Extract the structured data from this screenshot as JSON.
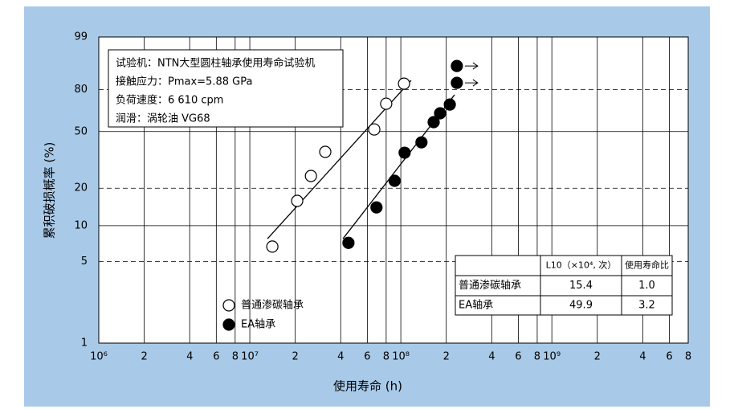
{
  "chart_data": {
    "type": "weibull",
    "x_label": "使用寿命 (h)",
    "y_label": "累积破损概率 (%)",
    "xlim": [
      1000000,
      8000000000
    ],
    "ylim": [
      1,
      99
    ],
    "x_log": true,
    "y_scale": "weibull",
    "xticks": [
      {
        "value": 1000000,
        "label": "10⁶"
      },
      {
        "value": 2000000,
        "label": "2"
      },
      {
        "value": 4000000,
        "label": "4"
      },
      {
        "value": 6000000,
        "label": "6"
      },
      {
        "value": 8000000,
        "label": "8"
      },
      {
        "value": 10000000,
        "label": "10⁷"
      },
      {
        "value": 20000000,
        "label": "2"
      },
      {
        "value": 40000000,
        "label": "4"
      },
      {
        "value": 60000000,
        "label": "6"
      },
      {
        "value": 80000000,
        "label": "8"
      },
      {
        "value": 100000000,
        "label": "10⁸"
      },
      {
        "value": 200000000,
        "label": "2"
      },
      {
        "value": 400000000,
        "label": "4"
      },
      {
        "value": 600000000,
        "label": "6"
      },
      {
        "value": 800000000,
        "label": "8"
      },
      {
        "value": 1000000000,
        "label": "10⁹"
      },
      {
        "value": 2000000000,
        "label": "2"
      },
      {
        "value": 4000000000,
        "label": "4"
      },
      {
        "value": 6000000000,
        "label": "6"
      },
      {
        "value": 8000000000,
        "label": "8"
      }
    ],
    "yticks": [
      1,
      5,
      10,
      20,
      50,
      80,
      99
    ],
    "ygrid_styles": [
      "solid",
      "dashed",
      "solid",
      "dashed",
      "solid",
      "dashed",
      "solid"
    ],
    "grid": true,
    "series": [
      {
        "name": "普通渗碳轴承",
        "marker": "open",
        "color": "#000000",
        "x": [
          14100000,
          20600000,
          25400000,
          31600000,
          66700000,
          80000000,
          105000000
        ],
        "values": [
          6.7,
          15.9,
          24.8,
          37.0,
          51.5,
          70.2,
          83.6
        ],
        "fit_x": [
          13100000,
          117000000
        ],
        "fit_values": [
          7.8,
          85.5
        ]
      },
      {
        "name": "EA轴承",
        "marker": "filled",
        "color": "#000000",
        "x": [
          45000000,
          69000000,
          91000000,
          106000000,
          137000000,
          165000000,
          182000000,
          211000000
        ],
        "values": [
          7.2,
          14.1,
          22.8,
          36.5,
          42.8,
          56.7,
          63.2,
          69.6
        ],
        "suspended_x": [
          235000000,
          235000000
        ],
        "suspended_values": [
          84.1,
          92.4
        ],
        "fit_x": [
          41400000,
          227000000
        ],
        "fit_values": [
          7.8,
          76.5
        ]
      }
    ],
    "annotations": [
      "试验机：NTN大型圆柱轴承使用寿命试验机",
      "接触应力：Pmax=5.88 GPa",
      "负荷速度：6 610 cpm",
      "润滑：涡轮油 VG68"
    ],
    "table": {
      "header": [
        "L10（×10⁴, 次）",
        "使用寿命比"
      ],
      "rows": [
        [
          "普通渗碳轴承",
          "15.4",
          "1.0"
        ],
        [
          "EA轴承",
          "49.9",
          "3.2"
        ]
      ]
    }
  }
}
